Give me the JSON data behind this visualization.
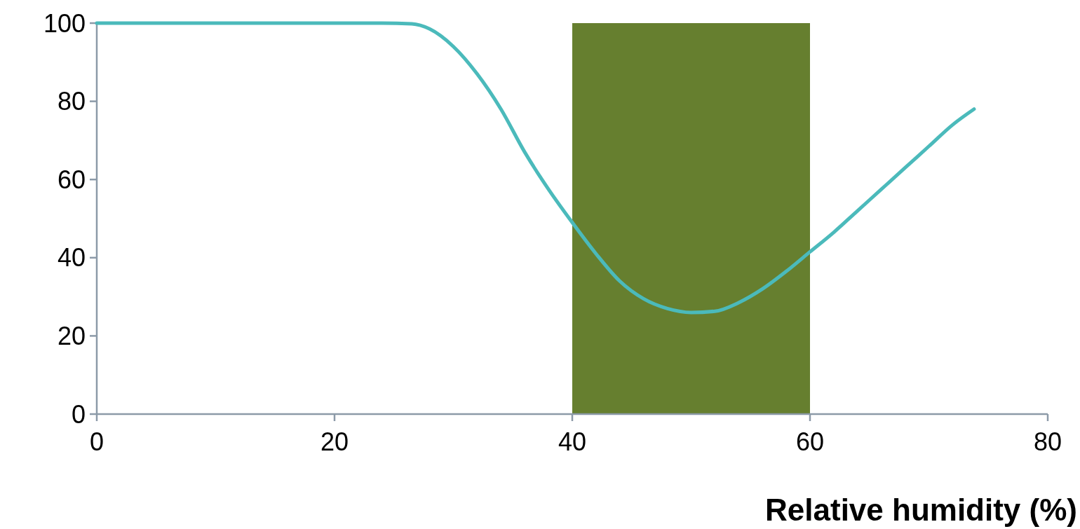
{
  "chart_data": {
    "type": "line",
    "xlabel": "Relative humidity (%)",
    "xlim": [
      0,
      80
    ],
    "xticks": [
      0,
      20,
      40,
      60,
      80
    ],
    "ylim": [
      0,
      100
    ],
    "yticks": [
      0,
      20,
      40,
      60,
      80,
      100
    ],
    "grid": false,
    "marker": "none",
    "line_style": "solid",
    "bands": [
      {
        "axis": "x",
        "from": 40,
        "to": 60,
        "color": "#667f2f"
      }
    ],
    "series": [
      {
        "color": "#4bbabb",
        "x": [
          0,
          10,
          20,
          24,
          26.5,
          28,
          30,
          32,
          34,
          36,
          38,
          40,
          42,
          44,
          46,
          48,
          50,
          52,
          54,
          56,
          58,
          60,
          62,
          64,
          66,
          68,
          70,
          72,
          73.8
        ],
        "values": [
          100,
          100,
          100,
          100,
          99.8,
          98.5,
          94,
          87,
          78,
          67,
          57.5,
          49,
          41,
          34,
          29.5,
          27,
          26,
          26.3,
          28.5,
          32,
          36.5,
          41.5,
          46.5,
          52,
          57.5,
          63,
          68.5,
          74,
          78
        ]
      }
    ]
  }
}
